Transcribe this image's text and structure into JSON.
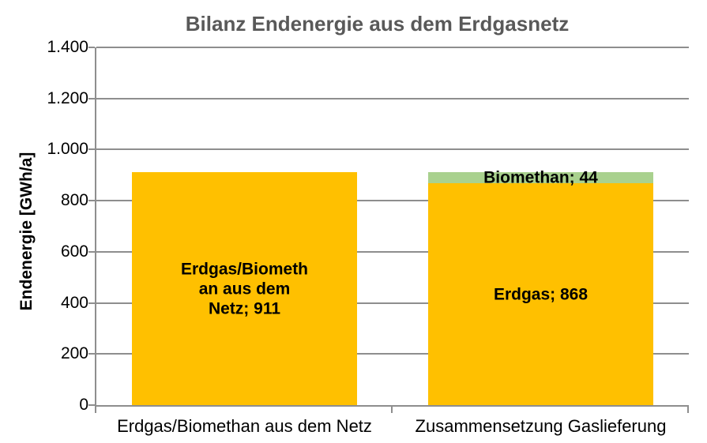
{
  "title": "Bilanz Endenergie aus dem Erdgasnetz",
  "colors": {
    "bar_orange": "#FFC000",
    "bar_green": "#A9D18E",
    "title_gray": "#595959",
    "axis_gray": "#8E8E8E",
    "label_black": "#000000"
  },
  "chart_data": {
    "type": "bar",
    "stacked": true,
    "title": "Bilanz Endenergie aus dem Erdgasnetz",
    "xlabel": "",
    "ylabel": "Endenergie [GWh/a]",
    "ylim": [
      0,
      1400
    ],
    "ytick_step": 200,
    "grid": true,
    "legend_position": "none",
    "yticks": [
      {
        "value": 1400,
        "label": "1.400"
      },
      {
        "value": 1200,
        "label": "1.200"
      },
      {
        "value": 1000,
        "label": "1.000"
      },
      {
        "value": 800,
        "label": "800"
      },
      {
        "value": 600,
        "label": "600"
      },
      {
        "value": 400,
        "label": "400"
      },
      {
        "value": 200,
        "label": "200"
      },
      {
        "value": 0,
        "label": "0"
      }
    ],
    "categories": [
      "Erdgas/Biomethan aus dem Netz",
      "Zusammensetzung Gaslieferung"
    ],
    "stacks": [
      {
        "category": "Erdgas/Biomethan aus dem Netz",
        "segments": [
          {
            "name": "Erdgas/Biomethan aus dem Netz",
            "value": 911,
            "color": "#FFC000",
            "label_lines": [
              "Erdgas/Biometh",
              "an aus dem",
              "Netz; 911"
            ]
          }
        ]
      },
      {
        "category": "Zusammensetzung Gaslieferung",
        "segments": [
          {
            "name": "Erdgas",
            "value": 868,
            "color": "#FFC000",
            "label_lines": [
              "Erdgas; 868"
            ]
          },
          {
            "name": "Biomethan",
            "value": 44,
            "color": "#A9D18E",
            "label_lines": [
              "Biomethan; 44"
            ]
          }
        ]
      }
    ]
  }
}
